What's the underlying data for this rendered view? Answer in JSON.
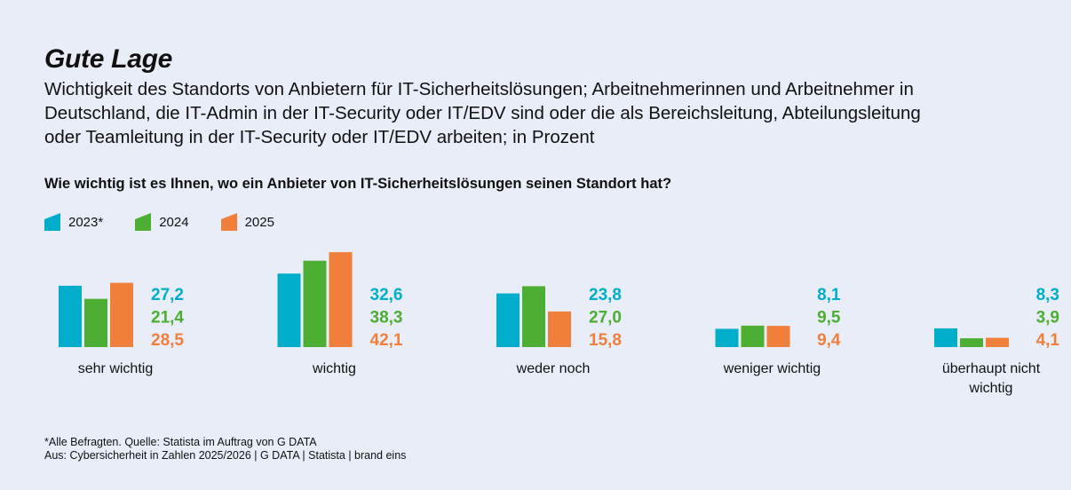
{
  "title": "Gute Lage",
  "subtitle_lines": [
    "Wichtigkeit des Standorts von Anbietern für IT-Sicherheitslösungen; Arbeitnehmerinnen und Arbeitnehmer in",
    "Deutschland, die IT-Admin in der IT-Security oder IT/EDV sind oder die als Bereichsleitung, Abteilungsleitung",
    "oder Teamleitung in der IT-Security oder IT/EDV arbeiten; in Prozent"
  ],
  "question": "Wie wichtig ist es Ihnen, wo ein Anbieter von IT-Sicherheitslösungen seinen Standort hat?",
  "footer": {
    "note": "*Alle Befragten. Quelle: Statista im Auftrag von G DATA",
    "source": "Aus: Cybersicherheit in Zahlen 2025/2026 | G DATA | Statista | brand eins"
  },
  "chart_data": {
    "type": "bar",
    "title": "Wie wichtig ist es Ihnen, wo ein Anbieter von IT-Sicherheitslösungen seinen Standort hat?",
    "categories": [
      "sehr wichtig",
      "wichtig",
      "weder noch",
      "weniger wichtig",
      "überhaupt nicht wichtig"
    ],
    "series": [
      {
        "name": "2023*",
        "color": "#00aecb",
        "values": [
          27.2,
          32.6,
          23.8,
          8.1,
          8.3
        ],
        "labels": [
          "27,2",
          "32,6",
          "23,8",
          "8,1",
          "8,3"
        ]
      },
      {
        "name": "2024",
        "color": "#4cae32",
        "values": [
          21.4,
          38.3,
          27.0,
          9.5,
          3.9
        ],
        "labels": [
          "21,4",
          "38,3",
          "27,0",
          "9,5",
          "3,9"
        ]
      },
      {
        "name": "2025",
        "color": "#f07f3c",
        "values": [
          28.5,
          42.1,
          15.8,
          9.4,
          4.1
        ],
        "labels": [
          "28,5",
          "42,1",
          "15,8",
          "9,4",
          "4,1"
        ]
      }
    ],
    "ylabel": "Prozent",
    "ylim": [
      0,
      45
    ],
    "grid": false,
    "legend": "top-left"
  }
}
